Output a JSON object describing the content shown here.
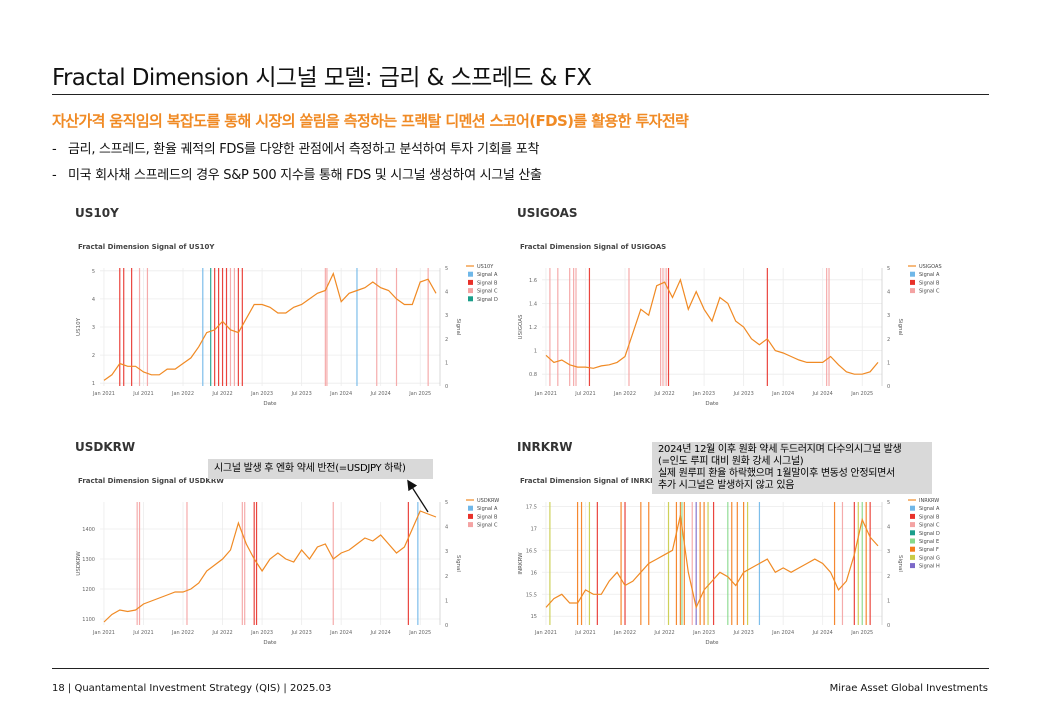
{
  "title": "Fractal Dimension 시그널 모델: 금리 & 스프레드 & FX",
  "subtitle": "자산가격 움직임의 복잡도를 통해 시장의 쏠림을 측정하는 프랙탈 디멘션 스코어(FDS)를 활용한 투자전략",
  "bullets": [
    "금리, 스프레드, 환율 궤적의 FDS를 다양한 관점에서 측정하고 분석하여 투자 기회를 포착",
    "미국 회사채 스프레드의 경우 S&P 500 지수를 통해 FDS 및 시그널 생성하여 시그널 산출"
  ],
  "bullet_marker": "-",
  "panels": [
    {
      "label": "US10Y"
    },
    {
      "label": "USIGOAS"
    },
    {
      "label": "USDKRW"
    },
    {
      "label": "INRKRW"
    }
  ],
  "callouts": {
    "usdkrw": "시그널 발생 후 엔화 약세 반전(=USDJPY 하락)",
    "inrkrw": [
      "2024년 12월 이후 원화 약세 두드러지며 다수의시그널 발생",
      "(=인도 루피 대비 원화 강세 시그널)",
      "실제 원루피 환율 하락했으며 1월말이후 변동성 안정되면서",
      "추가 시그널은 발생하지 않고 있음"
    ]
  },
  "footer": {
    "left": "18 | Quantamental Investment Strategy (QIS) | 2025.03",
    "right": "Mirae Asset Global Investments"
  },
  "colors": {
    "accent": "#f08a24",
    "price_line": "#f08a24",
    "Signal A": "#6fb7e8",
    "Signal B": "#e8312a",
    "Signal C": "#f4a3a3",
    "Signal D": "#1a9e8a",
    "Signal E": "#86d98a",
    "Signal F": "#f57c1a",
    "Signal G": "#c9cc47",
    "Signal H": "#7b68c8"
  },
  "chart_data": [
    {
      "type": "line",
      "title": "Fractal Dimension Signal of US10Y",
      "xlabel": "Date",
      "ylabel": "US10Y",
      "y2label": "Signal",
      "xticks": [
        "Jan 2021",
        "Jul 2021",
        "Jan 2022",
        "Jul 2022",
        "Jan 2023",
        "Jul 2023",
        "Jan 2024",
        "Jul 2024",
        "Jan 2025"
      ],
      "xlim": [
        2020.95,
        2025.25
      ],
      "yticks": [
        1,
        2,
        3,
        4,
        5
      ],
      "ylim": [
        0.9,
        5.1
      ],
      "y2ticks": [
        0,
        1,
        2,
        3,
        4,
        5
      ],
      "y2lim": [
        0,
        5
      ],
      "legend": [
        "US10Y",
        "Signal A",
        "Signal B",
        "Signal C",
        "Signal D"
      ],
      "series": [
        {
          "name": "US10Y",
          "x": [
            2021.0,
            2021.1,
            2021.2,
            2021.3,
            2021.4,
            2021.5,
            2021.6,
            2021.7,
            2021.8,
            2021.9,
            2022.0,
            2022.1,
            2022.2,
            2022.3,
            2022.4,
            2022.5,
            2022.6,
            2022.7,
            2022.8,
            2022.9,
            2023.0,
            2023.1,
            2023.2,
            2023.3,
            2023.4,
            2023.5,
            2023.6,
            2023.7,
            2023.8,
            2023.9,
            2024.0,
            2024.1,
            2024.2,
            2024.3,
            2024.4,
            2024.5,
            2024.6,
            2024.7,
            2024.8,
            2024.9,
            2025.0,
            2025.1,
            2025.2
          ],
          "y": [
            1.1,
            1.3,
            1.7,
            1.6,
            1.6,
            1.4,
            1.3,
            1.3,
            1.5,
            1.5,
            1.7,
            1.9,
            2.3,
            2.8,
            2.9,
            3.2,
            2.9,
            2.8,
            3.3,
            3.8,
            3.8,
            3.7,
            3.5,
            3.5,
            3.7,
            3.8,
            4.0,
            4.2,
            4.3,
            4.9,
            3.9,
            4.2,
            4.3,
            4.4,
            4.6,
            4.4,
            4.3,
            4.0,
            3.8,
            3.8,
            4.6,
            4.7,
            4.2
          ]
        }
      ],
      "signals": [
        {
          "name": "Signal B",
          "x": [
            2021.2,
            2021.25,
            2021.35
          ]
        },
        {
          "name": "Signal C",
          "x": [
            2021.45,
            2021.55,
            2022.6,
            2022.65
          ]
        },
        {
          "name": "Signal A",
          "x": [
            2022.25
          ]
        },
        {
          "name": "Signal D",
          "x": [
            2022.35
          ]
        },
        {
          "name": "Signal B",
          "x": [
            2022.4,
            2022.45,
            2022.5,
            2022.55,
            2022.7,
            2022.75
          ]
        },
        {
          "name": "Signal C",
          "x": [
            2023.8,
            2023.82,
            2024.45,
            2024.7,
            2025.1
          ]
        },
        {
          "name": "Signal A",
          "x": [
            2024.2
          ]
        }
      ]
    },
    {
      "type": "line",
      "title": "Fractal Dimension Signal of USIGOAS",
      "xlabel": "Date",
      "ylabel": "USIGOAS",
      "y2label": "Signal",
      "xticks": [
        "Jan 2021",
        "Jul 2021",
        "Jan 2022",
        "Jul 2022",
        "Jan 2023",
        "Jul 2023",
        "Jan 2024",
        "Jul 2024",
        "Jan 2025"
      ],
      "xlim": [
        2020.95,
        2025.25
      ],
      "yticks": [
        0.8,
        1,
        1.2,
        1.4,
        1.6
      ],
      "ylim": [
        0.7,
        1.7
      ],
      "y2ticks": [
        0,
        1,
        2,
        3,
        4,
        5
      ],
      "y2lim": [
        0,
        5
      ],
      "legend": [
        "USIGOAS",
        "Signal A",
        "Signal B",
        "Signal C"
      ],
      "series": [
        {
          "name": "USIGOAS",
          "x": [
            2021.0,
            2021.1,
            2021.2,
            2021.3,
            2021.4,
            2021.5,
            2021.6,
            2021.7,
            2021.8,
            2021.9,
            2022.0,
            2022.1,
            2022.2,
            2022.3,
            2022.4,
            2022.5,
            2022.6,
            2022.7,
            2022.8,
            2022.9,
            2023.0,
            2023.1,
            2023.2,
            2023.3,
            2023.4,
            2023.5,
            2023.6,
            2023.7,
            2023.8,
            2023.9,
            2024.0,
            2024.1,
            2024.2,
            2024.3,
            2024.4,
            2024.5,
            2024.6,
            2024.7,
            2024.8,
            2024.9,
            2025.0,
            2025.1,
            2025.2
          ],
          "y": [
            0.96,
            0.9,
            0.92,
            0.88,
            0.86,
            0.86,
            0.85,
            0.87,
            0.88,
            0.9,
            0.95,
            1.15,
            1.35,
            1.3,
            1.55,
            1.58,
            1.45,
            1.6,
            1.35,
            1.5,
            1.35,
            1.25,
            1.45,
            1.4,
            1.25,
            1.2,
            1.1,
            1.05,
            1.1,
            1.0,
            0.98,
            0.95,
            0.92,
            0.9,
            0.9,
            0.9,
            0.95,
            0.88,
            0.82,
            0.8,
            0.8,
            0.82,
            0.9
          ]
        }
      ],
      "signals": [
        {
          "name": "Signal C",
          "x": [
            2021.05,
            2021.15,
            2021.3,
            2021.35,
            2021.38,
            2022.05,
            2022.45,
            2022.48,
            2022.52,
            2024.55,
            2024.58
          ]
        },
        {
          "name": "Signal B",
          "x": [
            2021.55,
            2022.55,
            2023.8
          ]
        }
      ]
    },
    {
      "type": "line",
      "title": "Fractal Dimension Signal of USDKRW",
      "xlabel": "Date",
      "ylabel": "USDKRW",
      "y2label": "Signal",
      "xticks": [
        "Jan 2021",
        "Jul 2021",
        "Jan 2022",
        "Jul 2022",
        "Jan 2023",
        "Jul 2023",
        "Jan 2024",
        "Jul 2024",
        "Jan 2025"
      ],
      "xlim": [
        2020.95,
        2025.25
      ],
      "yticks": [
        1100,
        1200,
        1300,
        1400
      ],
      "ylim": [
        1080,
        1490
      ],
      "y2ticks": [
        0,
        1,
        2,
        3,
        4,
        5
      ],
      "y2lim": [
        0,
        5
      ],
      "legend": [
        "USDKRW",
        "Signal A",
        "Signal B",
        "Signal C"
      ],
      "series": [
        {
          "name": "USDKRW",
          "x": [
            2021.0,
            2021.1,
            2021.2,
            2021.3,
            2021.4,
            2021.5,
            2021.6,
            2021.7,
            2021.8,
            2021.9,
            2022.0,
            2022.1,
            2022.2,
            2022.3,
            2022.4,
            2022.5,
            2022.6,
            2022.7,
            2022.8,
            2022.9,
            2023.0,
            2023.1,
            2023.2,
            2023.3,
            2023.4,
            2023.5,
            2023.6,
            2023.7,
            2023.8,
            2023.9,
            2024.0,
            2024.1,
            2024.2,
            2024.3,
            2024.4,
            2024.5,
            2024.6,
            2024.7,
            2024.8,
            2024.9,
            2025.0,
            2025.1,
            2025.2
          ],
          "y": [
            1090,
            1115,
            1130,
            1125,
            1130,
            1150,
            1160,
            1170,
            1180,
            1190,
            1190,
            1200,
            1220,
            1260,
            1280,
            1300,
            1330,
            1420,
            1350,
            1300,
            1260,
            1300,
            1320,
            1300,
            1290,
            1330,
            1300,
            1340,
            1350,
            1300,
            1320,
            1330,
            1350,
            1370,
            1360,
            1380,
            1350,
            1320,
            1340,
            1400,
            1460,
            1450,
            1440
          ]
        }
      ],
      "signals": [
        {
          "name": "Signal C",
          "x": [
            2021.42,
            2021.45,
            2022.05,
            2022.75,
            2022.78,
            2023.9
          ]
        },
        {
          "name": "Signal B",
          "x": [
            2022.9,
            2022.93,
            2024.85
          ]
        },
        {
          "name": "Signal A",
          "x": [
            2024.97
          ]
        }
      ]
    },
    {
      "type": "line",
      "title": "Fractal Dimension Signal of INRKRW",
      "xlabel": "Date",
      "ylabel": "INRKRW",
      "y2label": "Signal",
      "xticks": [
        "Jan 2021",
        "Jul 2021",
        "Jan 2022",
        "Jul 2022",
        "Jan 2023",
        "Jul 2023",
        "Jan 2024",
        "Jul 2024",
        "Jan 2025"
      ],
      "xlim": [
        2020.95,
        2025.25
      ],
      "yticks": [
        15,
        15.5,
        16,
        16.5,
        17,
        17.5
      ],
      "ylim": [
        14.8,
        17.6
      ],
      "y2ticks": [
        0,
        1,
        2,
        3,
        4,
        5
      ],
      "y2lim": [
        0,
        5
      ],
      "legend": [
        "INRKRW",
        "Signal A",
        "Signal B",
        "Signal C",
        "Signal D",
        "Signal E",
        "Signal F",
        "Signal G",
        "Signal H"
      ],
      "series": [
        {
          "name": "INRKRW",
          "x": [
            2021.0,
            2021.1,
            2021.2,
            2021.3,
            2021.4,
            2021.5,
            2021.6,
            2021.7,
            2021.8,
            2021.9,
            2022.0,
            2022.1,
            2022.2,
            2022.3,
            2022.4,
            2022.5,
            2022.6,
            2022.7,
            2022.8,
            2022.9,
            2023.0,
            2023.1,
            2023.2,
            2023.3,
            2023.4,
            2023.5,
            2023.6,
            2023.7,
            2023.8,
            2023.9,
            2024.0,
            2024.1,
            2024.2,
            2024.3,
            2024.4,
            2024.5,
            2024.6,
            2024.7,
            2024.8,
            2024.9,
            2025.0,
            2025.1,
            2025.2
          ],
          "y": [
            15.2,
            15.4,
            15.5,
            15.3,
            15.3,
            15.6,
            15.5,
            15.5,
            15.8,
            16.0,
            15.7,
            15.8,
            16.0,
            16.2,
            16.3,
            16.4,
            16.5,
            17.3,
            16.0,
            15.2,
            15.6,
            15.8,
            16.0,
            15.9,
            15.7,
            16.0,
            16.1,
            16.2,
            16.3,
            16.0,
            16.1,
            16.0,
            16.1,
            16.2,
            16.3,
            16.2,
            16.0,
            15.6,
            15.8,
            16.4,
            17.2,
            16.8,
            16.6
          ]
        }
      ],
      "signals": [
        {
          "name": "Signal G",
          "x": [
            2021.05,
            2021.55,
            2022.55,
            2023.05,
            2023.55,
            2024.95
          ]
        },
        {
          "name": "Signal F",
          "x": [
            2021.4,
            2021.45,
            2021.95,
            2022.2,
            2022.3,
            2022.65,
            2022.7,
            2022.75,
            2022.95,
            2023.0,
            2023.35,
            2023.42,
            2023.5,
            2024.65,
            2025.05
          ]
        },
        {
          "name": "Signal B",
          "x": [
            2021.65,
            2022.0,
            2023.12,
            2024.9,
            2025.1
          ]
        },
        {
          "name": "Signal E",
          "x": [
            2022.72,
            2023.3,
            2025.0
          ]
        },
        {
          "name": "Signal C",
          "x": [
            2022.85,
            2024.75
          ]
        },
        {
          "name": "Signal A",
          "x": [
            2023.7
          ]
        },
        {
          "name": "Signal H",
          "x": [
            2022.9
          ]
        }
      ]
    }
  ]
}
